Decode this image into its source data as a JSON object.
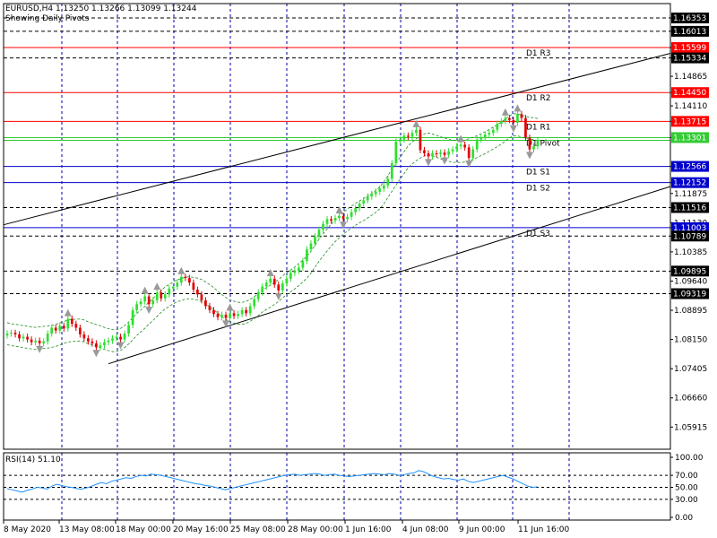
{
  "header": {
    "symbol_line": "EURUSD,H4  1.13250 1.13266 1.13099 1.13244",
    "subtitle": "Showing Daily Pivots"
  },
  "rsi_panel": {
    "title": "RSI(14) 51.10"
  },
  "colors": {
    "background": "#ffffff",
    "bull_candle": "#2ee02e",
    "bear_candle": "#e00000",
    "resistance_line": "#ff0000",
    "support_line": "#0000cc",
    "pivot_line": "#33cc33",
    "grid": "#0000aa",
    "rsi_line": "#1e90ff",
    "bands": "#228b22",
    "fractal": "#999999",
    "channel": "#000000"
  },
  "chart_data": [
    {
      "type": "candlestick",
      "title": "EURUSD,H4",
      "ylim": [
        1.0535,
        1.1672
      ],
      "yticks": [
        "1.16353",
        "1.16013",
        "1.15599",
        "1.15334",
        "1.14865",
        "1.14450",
        "1.14110",
        "1.13715",
        "1.13301",
        "1.12566",
        "1.12152",
        "1.11875",
        "1.11516",
        "1.11130",
        "1.11003",
        "1.10789",
        "1.10385",
        "1.09895",
        "1.09640",
        "1.09319",
        "1.08895",
        "1.08150",
        "1.07405",
        "1.06660",
        "1.05915"
      ],
      "highlighted_ticks": [
        "1.16353",
        "1.16013",
        "1.15599",
        "1.15334",
        "1.14450",
        "1.13715",
        "1.13301",
        "1.12566",
        "1.12152",
        "1.11516",
        "1.11003",
        "1.10789",
        "1.09895",
        "1.09319"
      ],
      "xlabels": [
        "8 May 2020",
        "13 May 08:00",
        "18 May 00:00",
        "20 May 16:00",
        "25 May 08:00",
        "28 May 00:00",
        "1 Jun 16:00",
        "4 Jun 08:00",
        "9 Jun 00:00",
        "11 Jun 16:00"
      ],
      "pivot_levels": [
        {
          "name": "D1 R3",
          "value": 1.15599,
          "kind": "resistance"
        },
        {
          "name": "D1 R2",
          "value": 1.1445,
          "kind": "resistance"
        },
        {
          "name": "D1 R1",
          "value": 1.13715,
          "kind": "resistance"
        },
        {
          "name": "D1 Pivot",
          "value": 1.13301,
          "kind": "pivot"
        },
        {
          "name": "D1 S1",
          "value": 1.12566,
          "kind": "support"
        },
        {
          "name": "D1 S2",
          "value": 1.12152,
          "kind": "support"
        },
        {
          "name": "D1 S3",
          "value": 1.11003,
          "kind": "support"
        }
      ],
      "dashed_levels": [
        1.16353,
        1.16013,
        1.15334,
        1.11516,
        1.10789,
        1.09895,
        1.09319
      ],
      "channel_upper": [
        [
          0,
          1.111
        ],
        [
          160,
          1.1535
        ]
      ],
      "channel_lower": [
        [
          25,
          1.0753
        ],
        [
          160,
          1.1193
        ]
      ],
      "closes": [
        1.083,
        1.0832,
        1.0828,
        1.0818,
        1.0822,
        1.0815,
        1.0808,
        1.0812,
        1.0805,
        1.081,
        1.083,
        1.0845,
        1.0838,
        1.085,
        1.0843,
        1.0868,
        1.0855,
        1.0845,
        1.0828,
        1.0818,
        1.081,
        1.0805,
        1.0795,
        1.08,
        1.0808,
        1.0812,
        1.0818,
        1.0822,
        1.0815,
        1.083,
        1.0852,
        1.089,
        1.0905,
        1.0912,
        1.0925,
        1.0905,
        1.0915,
        1.0935,
        1.092,
        1.093,
        1.0945,
        1.095,
        1.096,
        1.0975,
        1.0972,
        1.096,
        1.0942,
        1.093,
        1.0915,
        1.09,
        1.089,
        1.088,
        1.0872,
        1.0878,
        1.087,
        1.0882,
        1.0875,
        1.088,
        1.089,
        1.0882,
        1.09,
        1.0918,
        1.0935,
        1.095,
        1.096,
        1.097,
        1.0955,
        1.094,
        1.0958,
        1.097,
        1.0985,
        1.099,
        1.0998,
        1.1015,
        1.1045,
        1.106,
        1.1078,
        1.1095,
        1.111,
        1.1122,
        1.1118,
        1.1125,
        1.113,
        1.1122,
        1.1128,
        1.114,
        1.115,
        1.1162,
        1.117,
        1.118,
        1.1186,
        1.1192,
        1.12,
        1.1208,
        1.1225,
        1.1265,
        1.132,
        1.1325,
        1.1335,
        1.1332,
        1.1342,
        1.135,
        1.1298,
        1.129,
        1.1282,
        1.129,
        1.1288,
        1.1292,
        1.1286,
        1.1295,
        1.13,
        1.1308,
        1.1312,
        1.1305,
        1.1278,
        1.13,
        1.1325,
        1.133,
        1.1338,
        1.1342,
        1.135,
        1.1365,
        1.1372,
        1.138,
        1.1375,
        1.1368,
        1.139,
        1.138,
        1.133,
        1.13,
        1.1308,
        1.1324
      ]
    },
    {
      "type": "line",
      "title": "RSI(14) 51.10",
      "ylim": [
        0,
        100
      ],
      "yticks": [
        "100.00",
        "70.00",
        "50.00",
        "30.00",
        "0.00"
      ],
      "levels": [
        70,
        50,
        30
      ],
      "values": [
        48,
        46,
        44,
        42,
        45,
        47,
        50,
        49,
        47,
        52,
        55,
        53,
        51,
        50,
        48,
        47,
        49,
        52,
        55,
        58,
        56,
        60,
        62,
        64,
        66,
        65,
        68,
        70,
        69,
        72,
        71,
        70,
        68,
        66,
        64,
        62,
        60,
        58,
        56,
        55,
        53,
        52,
        50,
        48,
        46,
        48,
        50,
        52,
        54,
        56,
        58,
        60,
        62,
        64,
        66,
        68,
        70,
        71,
        72,
        70,
        71,
        72,
        73,
        72,
        70,
        71,
        72,
        70,
        69,
        68,
        69,
        70,
        71,
        72,
        73,
        72,
        71,
        73,
        72,
        70,
        71,
        73,
        74,
        78,
        76,
        72,
        68,
        66,
        64,
        65,
        63,
        62,
        64,
        60,
        58,
        60,
        62,
        64,
        66,
        68,
        70,
        67,
        64,
        60,
        56,
        52,
        50,
        51
      ]
    }
  ]
}
